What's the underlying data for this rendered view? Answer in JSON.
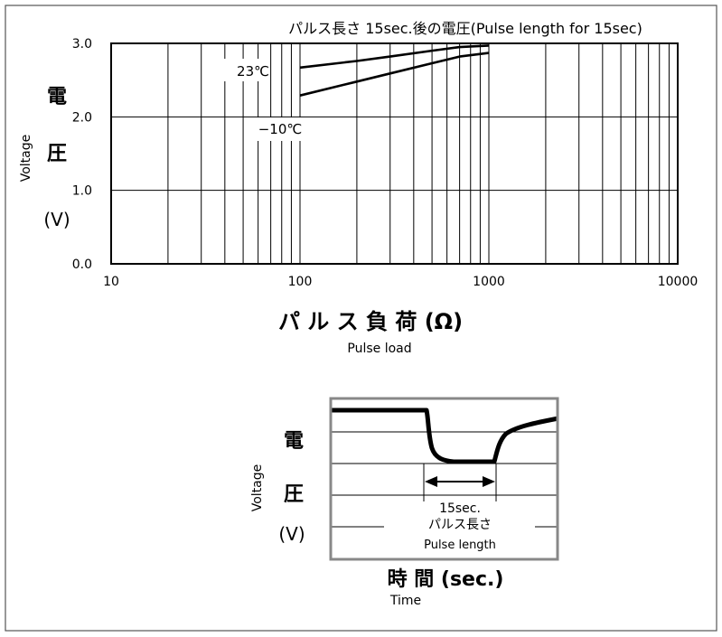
{
  "chart_data": [
    {
      "type": "line",
      "title": "パルス長さ  15sec.後の電圧(Pulse length for 15sec)",
      "xlabel": "パ ル ス 負 荷 (Ω)",
      "xlabel_en": "Pulse load",
      "ylabel_chars": [
        "電",
        "圧",
        "(V)"
      ],
      "ylabel_en": "Voltage",
      "x_scale": "log",
      "xlim": [
        10,
        10000
      ],
      "ylim": [
        0.0,
        3.0
      ],
      "xticks": [
        "10",
        "100",
        "1000",
        "10000"
      ],
      "yticks": [
        "3.0",
        "2.0",
        "1.0",
        "0.0"
      ],
      "grid": true,
      "series": [
        {
          "name": "23℃",
          "x": [
            100,
            200,
            300,
            500,
            700,
            1000
          ],
          "y": [
            2.67,
            2.76,
            2.82,
            2.9,
            2.95,
            2.97
          ]
        },
        {
          "name": "−10℃",
          "x": [
            100,
            200,
            300,
            500,
            700,
            1000
          ],
          "y": [
            2.29,
            2.48,
            2.59,
            2.73,
            2.82,
            2.87
          ]
        }
      ]
    },
    {
      "type": "line",
      "xlabel": "時  間 (sec.)",
      "xlabel_en": "Time",
      "ylabel_chars": [
        "電",
        "圧",
        "(V)"
      ],
      "ylabel_en": "Voltage",
      "annotation": [
        "15sec.",
        "パルス長さ",
        "Pulse length"
      ]
    }
  ]
}
